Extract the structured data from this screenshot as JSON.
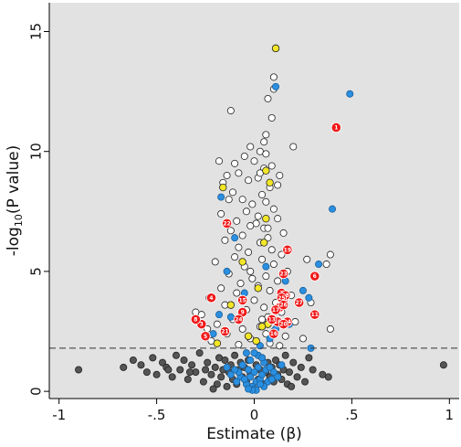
{
  "chart_data": {
    "type": "scatter",
    "title": "",
    "xlabel": "Estimate (β)",
    "ylabel_prefix": "-log",
    "ylabel_sub": "10",
    "ylabel_suffix": "(P value)",
    "xlim": [
      -1.05,
      1.05
    ],
    "ylim": [
      -0.3,
      16.2
    ],
    "x_ticks": [
      -1,
      -0.5,
      0,
      0.5,
      1
    ],
    "x_tick_labels": [
      "-1",
      "-.5",
      "0",
      ".5",
      "1"
    ],
    "y_ticks": [
      0,
      5,
      10,
      15
    ],
    "y_tick_labels": [
      "0",
      "5",
      "10",
      "15"
    ],
    "threshold_y": 1.8,
    "grid": false,
    "background": "#e2e2e2",
    "colors": {
      "nonsignificant": "#555555",
      "significant": "#ffffff",
      "blue": "#2b8fe0",
      "yellow": "#f2e627",
      "red": "#f01818"
    },
    "series": [
      {
        "group": "nonsignificant",
        "points": [
          [
            -0.9,
            0.9
          ],
          [
            -0.67,
            1.0
          ],
          [
            -0.62,
            1.3
          ],
          [
            -0.58,
            1.1
          ],
          [
            -0.55,
            0.8
          ],
          [
            -0.52,
            1.4
          ],
          [
            -0.5,
            0.7
          ],
          [
            -0.47,
            1.2
          ],
          [
            -0.45,
            1.0
          ],
          [
            -0.42,
            0.6
          ],
          [
            -0.4,
            1.5
          ],
          [
            -0.38,
            0.9
          ],
          [
            -0.36,
            1.3
          ],
          [
            -0.34,
            0.5
          ],
          [
            -0.32,
            1.1
          ],
          [
            -0.3,
            0.8
          ],
          [
            -0.28,
            1.6
          ],
          [
            -0.26,
            0.4
          ],
          [
            -0.24,
            1.2
          ],
          [
            -0.22,
            0.7
          ],
          [
            -0.2,
            1.0
          ],
          [
            -0.19,
            0.3
          ],
          [
            -0.18,
            1.4
          ],
          [
            -0.17,
            0.6
          ],
          [
            -0.16,
            0.9
          ],
          [
            -0.15,
            1.3
          ],
          [
            -0.14,
            0.2
          ],
          [
            -0.13,
            0.8
          ],
          [
            -0.12,
            1.1
          ],
          [
            -0.11,
            0.5
          ],
          [
            -0.1,
            1.5
          ],
          [
            -0.09,
            0.3
          ],
          [
            -0.08,
            0.9
          ],
          [
            -0.07,
            1.2
          ],
          [
            -0.06,
            0.6
          ],
          [
            -0.05,
            1.0
          ],
          [
            -0.04,
            0.4
          ],
          [
            -0.03,
            1.3
          ],
          [
            -0.02,
            0.7
          ],
          [
            -0.01,
            0.2
          ],
          [
            0.01,
            1.1
          ],
          [
            0.02,
            0.5
          ],
          [
            0.03,
            0.9
          ],
          [
            0.04,
            1.4
          ],
          [
            0.05,
            0.3
          ],
          [
            0.06,
            0.8
          ],
          [
            0.07,
            1.2
          ],
          [
            0.08,
            0.6
          ],
          [
            0.09,
            1.0
          ],
          [
            0.1,
            0.4
          ],
          [
            0.11,
            1.3
          ],
          [
            0.12,
            0.7
          ],
          [
            0.13,
            1.1
          ],
          [
            0.14,
            0.5
          ],
          [
            0.15,
            0.9
          ],
          [
            0.16,
            1.5
          ],
          [
            0.17,
            0.3
          ],
          [
            0.18,
            0.8
          ],
          [
            0.2,
            1.2
          ],
          [
            0.22,
            0.6
          ],
          [
            0.24,
            1.0
          ],
          [
            0.26,
            0.4
          ],
          [
            0.28,
            1.4
          ],
          [
            0.3,
            0.9
          ],
          [
            0.35,
            0.7
          ],
          [
            0.38,
            0.6
          ],
          [
            0.97,
            1.1
          ],
          [
            -0.25,
            0.9
          ],
          [
            -0.33,
            0.8
          ],
          [
            -0.44,
            0.9
          ],
          [
            0.19,
            0.2
          ],
          [
            -0.21,
            0.1
          ]
        ]
      },
      {
        "group": "significant",
        "points": [
          [
            0.11,
            14.3
          ],
          [
            0.1,
            13.1
          ],
          [
            0.1,
            12.6
          ],
          [
            0.07,
            12.2
          ],
          [
            -0.12,
            11.7
          ],
          [
            0.09,
            11.4
          ],
          [
            0.06,
            10.7
          ],
          [
            0.05,
            10.4
          ],
          [
            0.2,
            10.2
          ],
          [
            -0.02,
            10.2
          ],
          [
            0.03,
            10.0
          ],
          [
            0.06,
            9.9
          ],
          [
            -0.05,
            9.8
          ],
          [
            0.0,
            9.6
          ],
          [
            -0.18,
            9.6
          ],
          [
            -0.1,
            9.5
          ],
          [
            0.09,
            9.4
          ],
          [
            0.05,
            9.3
          ],
          [
            -0.08,
            9.1
          ],
          [
            0.13,
            9.0
          ],
          [
            -0.14,
            9.0
          ],
          [
            0.02,
            8.9
          ],
          [
            -0.03,
            8.8
          ],
          [
            0.12,
            8.6
          ],
          [
            -0.16,
            8.7
          ],
          [
            0.08,
            8.5
          ],
          [
            -0.11,
            8.3
          ],
          [
            0.04,
            8.2
          ],
          [
            -0.06,
            8.0
          ],
          [
            -0.13,
            8.0
          ],
          [
            0.06,
            7.9
          ],
          [
            -0.01,
            7.8
          ],
          [
            0.1,
            7.6
          ],
          [
            -0.04,
            7.5
          ],
          [
            -0.17,
            7.4
          ],
          [
            0.02,
            7.3
          ],
          [
            0.12,
            7.2
          ],
          [
            -0.09,
            7.1
          ],
          [
            0.01,
            7.0
          ],
          [
            -0.02,
            6.9
          ],
          [
            0.05,
            6.8
          ],
          [
            -0.12,
            6.7
          ],
          [
            0.15,
            6.6
          ],
          [
            -0.06,
            6.5
          ],
          [
            0.07,
            6.4
          ],
          [
            -0.15,
            6.3
          ],
          [
            0.03,
            6.2
          ],
          [
            -0.08,
            6.0
          ],
          [
            0.09,
            5.9
          ],
          [
            -0.03,
            5.8
          ],
          [
            0.14,
            5.7
          ],
          [
            -0.1,
            5.6
          ],
          [
            0.04,
            5.5
          ],
          [
            -0.2,
            5.4
          ],
          [
            0.1,
            5.3
          ],
          [
            -0.05,
            5.2
          ],
          [
            0.17,
            5.0
          ],
          [
            -0.13,
            4.9
          ],
          [
            0.06,
            4.8
          ],
          [
            -0.01,
            4.7
          ],
          [
            0.12,
            4.6
          ],
          [
            -0.07,
            4.5
          ],
          [
            0.02,
            4.4
          ],
          [
            -0.17,
            4.3
          ],
          [
            0.08,
            4.2
          ],
          [
            -0.09,
            4.1
          ],
          [
            0.19,
            4.0
          ],
          [
            -0.23,
            3.9
          ],
          [
            0.0,
            3.8
          ],
          [
            0.11,
            3.7
          ],
          [
            -0.15,
            3.6
          ],
          [
            0.05,
            3.5
          ],
          [
            -0.04,
            3.4
          ],
          [
            0.14,
            3.3
          ],
          [
            -0.27,
            3.2
          ],
          [
            0.07,
            3.1
          ],
          [
            -0.11,
            3.0
          ],
          [
            0.21,
            2.9
          ],
          [
            -0.19,
            2.8
          ],
          [
            0.03,
            2.7
          ],
          [
            -0.06,
            2.6
          ],
          [
            0.1,
            2.5
          ],
          [
            -0.14,
            2.4
          ],
          [
            0.16,
            2.3
          ],
          [
            -0.02,
            2.2
          ],
          [
            0.25,
            2.2
          ],
          [
            -0.22,
            2.1
          ],
          [
            0.08,
            2.0
          ],
          [
            -0.08,
            1.95
          ],
          [
            0.13,
            1.9
          ],
          [
            0.39,
            5.7
          ],
          [
            0.37,
            5.3
          ],
          [
            0.27,
            5.5
          ],
          [
            0.29,
            3.7
          ],
          [
            0.39,
            2.6
          ],
          [
            -0.3,
            3.3
          ],
          [
            -0.24,
            2.6
          ],
          [
            0.03,
            9.1
          ],
          [
            0.07,
            6.8
          ],
          [
            -0.02,
            5.0
          ],
          [
            0.04,
            3.0
          ],
          [
            0.06,
            2.4
          ]
        ]
      },
      {
        "group": "blue",
        "points": [
          [
            0.49,
            12.4
          ],
          [
            0.11,
            12.7
          ],
          [
            0.4,
            7.6
          ],
          [
            -0.17,
            8.1
          ],
          [
            -0.1,
            6.4
          ],
          [
            0.33,
            5.3
          ],
          [
            -0.14,
            5.0
          ],
          [
            0.06,
            5.2
          ],
          [
            0.25,
            4.2
          ],
          [
            0.28,
            3.9
          ],
          [
            -0.05,
            4.1
          ],
          [
            0.16,
            4.6
          ],
          [
            -0.18,
            3.2
          ],
          [
            0.18,
            2.8
          ],
          [
            -0.21,
            2.4
          ],
          [
            0.08,
            2.2
          ],
          [
            0.03,
            1.9
          ],
          [
            -0.12,
            3.1
          ],
          [
            0.29,
            1.8
          ],
          [
            0.11,
            2.6
          ],
          [
            0.05,
            1.2
          ],
          [
            0.02,
            1.0
          ],
          [
            0.0,
            0.8
          ],
          [
            -0.02,
            0.6
          ],
          [
            0.01,
            0.4
          ],
          [
            -0.01,
            0.2
          ],
          [
            0.03,
            0.5
          ],
          [
            -0.03,
            0.9
          ],
          [
            0.04,
            0.7
          ],
          [
            -0.04,
            0.3
          ],
          [
            0.06,
            0.9
          ],
          [
            -0.06,
            1.1
          ],
          [
            0.07,
            0.4
          ],
          [
            -0.07,
            0.6
          ],
          [
            0.08,
            1.0
          ],
          [
            -0.08,
            0.8
          ],
          [
            0.09,
            0.5
          ],
          [
            -0.09,
            0.4
          ],
          [
            0.02,
            1.5
          ],
          [
            -0.02,
            1.3
          ],
          [
            0.0,
            0.1
          ],
          [
            0.01,
            0.05
          ],
          [
            -0.01,
            0.05
          ],
          [
            0.1,
            0.8
          ],
          [
            -0.1,
            0.9
          ],
          [
            0.12,
            0.6
          ],
          [
            -0.12,
            0.7
          ],
          [
            0.0,
            1.6
          ],
          [
            0.04,
            1.4
          ],
          [
            -0.04,
            1.6
          ],
          [
            0.05,
            0.2
          ],
          [
            -0.05,
            0.5
          ],
          [
            0.14,
            1.1
          ],
          [
            -0.14,
            1.0
          ],
          [
            0.03,
            0.3
          ],
          [
            -0.03,
            0.1
          ]
        ]
      },
      {
        "group": "yellow",
        "points": [
          [
            0.11,
            14.3
          ],
          [
            0.06,
            9.2
          ],
          [
            0.08,
            8.7
          ],
          [
            -0.16,
            8.5
          ],
          [
            0.06,
            7.2
          ],
          [
            0.05,
            6.2
          ],
          [
            -0.06,
            5.4
          ],
          [
            0.02,
            4.3
          ],
          [
            -0.12,
            3.6
          ],
          [
            0.07,
            2.8
          ],
          [
            0.04,
            2.7
          ],
          [
            -0.03,
            2.3
          ],
          [
            0.01,
            2.1
          ],
          [
            -0.19,
            2.0
          ]
        ]
      },
      {
        "group": "red",
        "points": [
          [
            0.42,
            11.0,
            "1"
          ],
          [
            0.14,
            4.1,
            "2"
          ],
          [
            -0.27,
            2.8,
            "3"
          ],
          [
            -0.22,
            3.9,
            "4"
          ],
          [
            -0.25,
            2.3,
            "5"
          ],
          [
            0.31,
            4.8,
            "6"
          ],
          [
            0.15,
            3.7,
            "7"
          ],
          [
            -0.3,
            3.0,
            "8"
          ],
          [
            -0.06,
            3.3,
            "9"
          ],
          [
            0.12,
            2.9,
            "10"
          ],
          [
            0.31,
            3.2,
            "11"
          ],
          [
            0.13,
            3.5,
            "12"
          ],
          [
            0.09,
            3.0,
            "13"
          ],
          [
            0.17,
            2.9,
            "14"
          ],
          [
            -0.06,
            3.8,
            "15"
          ],
          [
            0.1,
            2.4,
            "16"
          ],
          [
            0.11,
            3.4,
            "17"
          ],
          [
            0.16,
            4.0,
            "18"
          ],
          [
            0.17,
            5.9,
            "19"
          ],
          [
            0.15,
            2.8,
            "20"
          ],
          [
            -0.15,
            2.5,
            "21"
          ],
          [
            -0.14,
            7.0,
            "22"
          ],
          [
            0.15,
            4.9,
            "23"
          ],
          [
            -0.08,
            3.0,
            "24"
          ],
          [
            0.14,
            3.9,
            "25"
          ],
          [
            0.15,
            3.6,
            "26"
          ],
          [
            0.23,
            3.7,
            "27"
          ]
        ]
      }
    ]
  }
}
